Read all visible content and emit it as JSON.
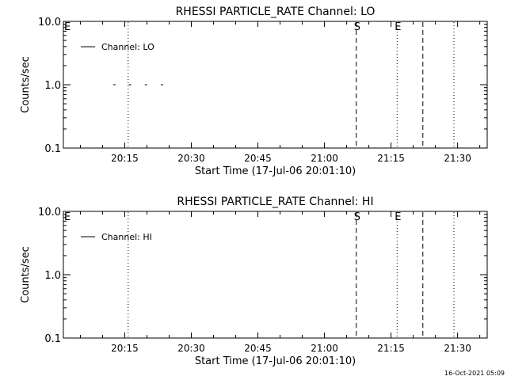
{
  "footer": {
    "timestamp": "16-Oct-2021 05:09"
  },
  "chart_data": [
    {
      "type": "line",
      "title": "RHESSI PARTICLE_RATE Channel: LO",
      "xlabel": "Start Time (17-Jul-06 20:01:10)",
      "ylabel": "Counts/sec",
      "yscale": "log",
      "ylim": [
        0.1,
        10.0
      ],
      "xlim_minutes": [
        0,
        95.5
      ],
      "xticks": [
        {
          "label": "20:15",
          "minutes": 13.83
        },
        {
          "label": "20:30",
          "minutes": 28.83
        },
        {
          "label": "20:45",
          "minutes": 43.83
        },
        {
          "label": "21:00",
          "minutes": 58.83
        },
        {
          "label": "21:15",
          "minutes": 73.83
        },
        {
          "label": "21:30",
          "minutes": 88.83
        }
      ],
      "yticks": [
        {
          "label": "0.1",
          "value": 0.1
        },
        {
          "label": "1.0",
          "value": 1.0
        },
        {
          "label": "10.0",
          "value": 10.0
        }
      ],
      "series": [
        {
          "name": "Channel: LO",
          "x_minutes": [
            11.5,
            15.0,
            18.6,
            22.2
          ],
          "values": [
            1.0,
            1.0,
            1.0,
            1.0
          ]
        }
      ],
      "legend": "top-left",
      "markers": [
        {
          "label": "E",
          "minutes": 0,
          "style": "none"
        },
        {
          "label": "",
          "minutes": 14.6,
          "style": "dotted"
        },
        {
          "label": "S",
          "minutes": 66.0,
          "style": "dashed"
        },
        {
          "label": "E",
          "minutes": 75.2,
          "style": "dotted"
        },
        {
          "label": "",
          "minutes": 81.0,
          "style": "dashed"
        },
        {
          "label": "",
          "minutes": 88.0,
          "style": "dotted"
        }
      ]
    },
    {
      "type": "line",
      "title": "RHESSI PARTICLE_RATE Channel: HI",
      "xlabel": "Start Time (17-Jul-06 20:01:10)",
      "ylabel": "Counts/sec",
      "yscale": "log",
      "ylim": [
        0.1,
        10.0
      ],
      "xlim_minutes": [
        0,
        95.5
      ],
      "xticks": [
        {
          "label": "20:15",
          "minutes": 13.83
        },
        {
          "label": "20:30",
          "minutes": 28.83
        },
        {
          "label": "20:45",
          "minutes": 43.83
        },
        {
          "label": "21:00",
          "minutes": 58.83
        },
        {
          "label": "21:15",
          "minutes": 73.83
        },
        {
          "label": "21:30",
          "minutes": 88.83
        }
      ],
      "yticks": [
        {
          "label": "0.1",
          "value": 0.1
        },
        {
          "label": "1.0",
          "value": 1.0
        },
        {
          "label": "10.0",
          "value": 10.0
        }
      ],
      "series": [
        {
          "name": "Channel: HI",
          "x_minutes": [],
          "values": []
        }
      ],
      "legend": "top-left",
      "markers": [
        {
          "label": "E",
          "minutes": 0,
          "style": "none"
        },
        {
          "label": "",
          "minutes": 14.6,
          "style": "dotted"
        },
        {
          "label": "S",
          "minutes": 66.0,
          "style": "dashed"
        },
        {
          "label": "E",
          "minutes": 75.2,
          "style": "dotted"
        },
        {
          "label": "",
          "minutes": 81.0,
          "style": "dashed"
        },
        {
          "label": "",
          "minutes": 88.0,
          "style": "dotted"
        }
      ]
    }
  ]
}
